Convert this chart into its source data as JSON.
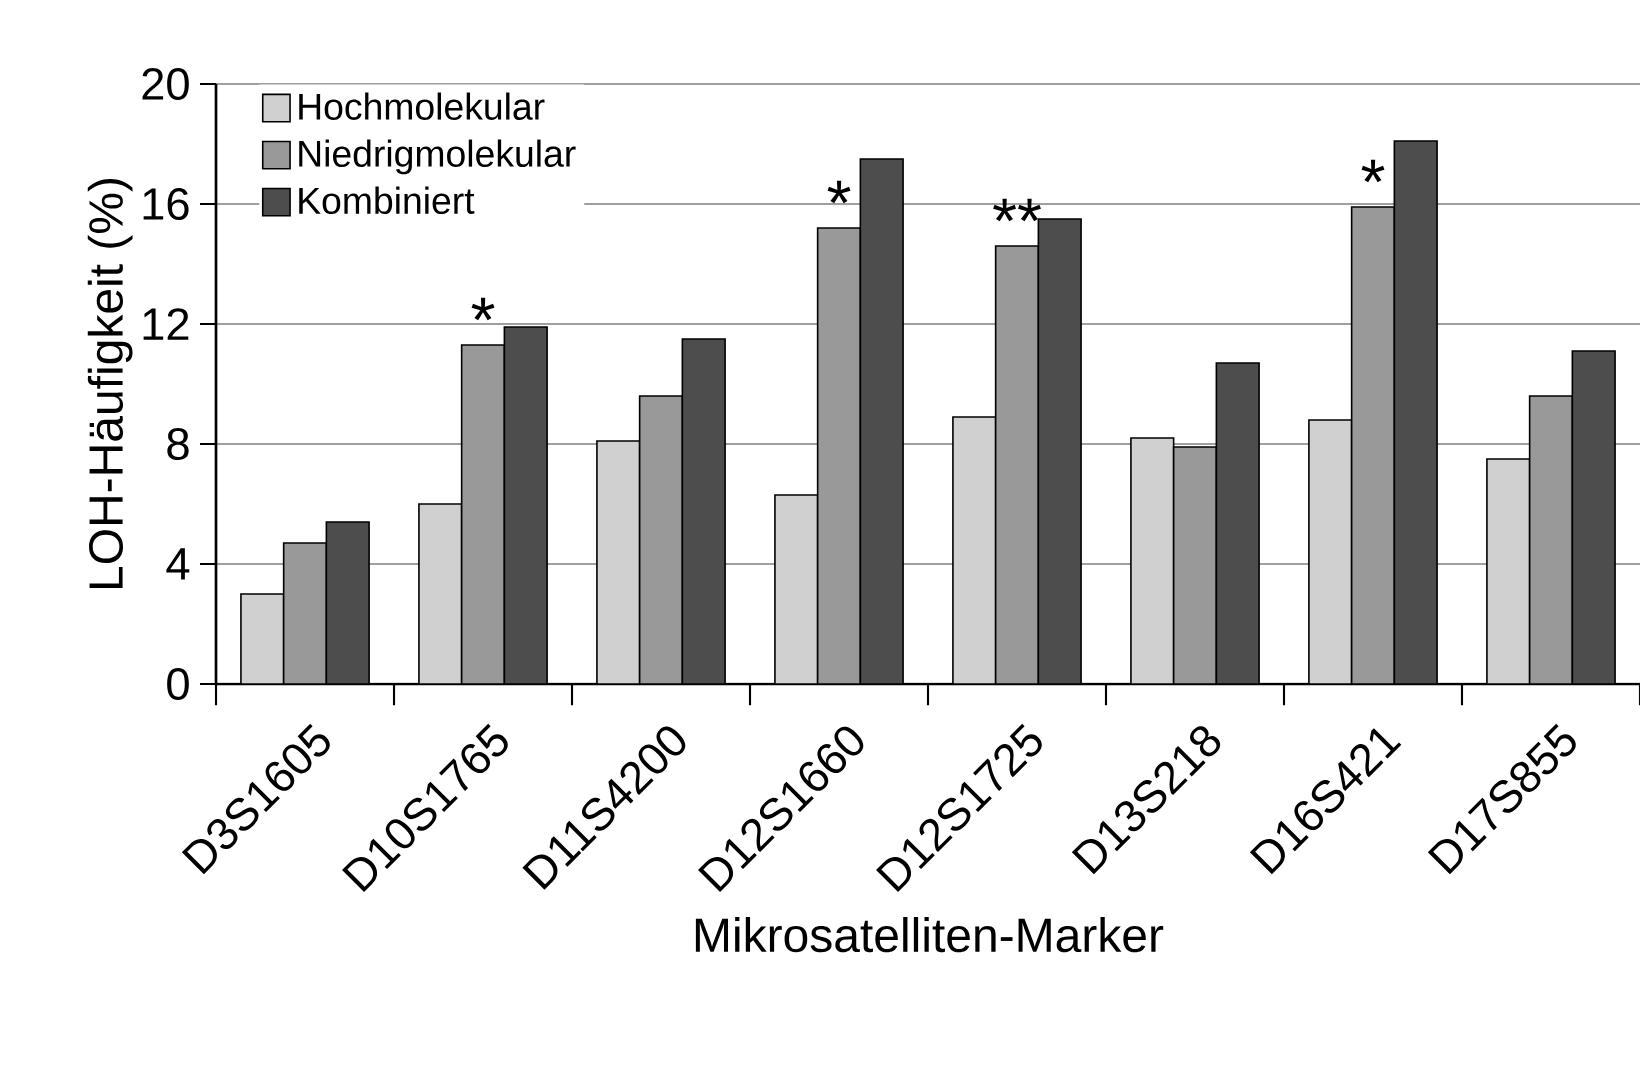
{
  "chart_data": {
    "type": "bar",
    "xlabel": "Mikrosatelliten-Marker",
    "ylabel": "LOH-Häufigkeit (%)",
    "categories": [
      "D3S1605",
      "D10S1765",
      "D11S4200",
      "D12S1660",
      "D12S1725",
      "D13S218",
      "D16S421",
      "D17S855"
    ],
    "series": [
      {
        "name": "Hochmolekular",
        "color": "#d0d0d0",
        "values": [
          3.0,
          6.0,
          8.1,
          6.3,
          8.9,
          8.2,
          8.8,
          7.5
        ]
      },
      {
        "name": "Niedrigmolekular",
        "color": "#999999",
        "values": [
          4.7,
          11.3,
          9.6,
          15.2,
          14.6,
          7.9,
          15.9,
          9.6
        ]
      },
      {
        "name": "Kombiniert",
        "color": "#4d4d4d",
        "values": [
          5.4,
          11.9,
          11.5,
          17.5,
          15.5,
          10.7,
          18.1,
          11.1
        ]
      }
    ],
    "ylim": [
      0,
      20
    ],
    "yticks": [
      0,
      4,
      8,
      12,
      16,
      20
    ],
    "grid": "y",
    "legend": "top left",
    "annotations": [
      {
        "text": "*",
        "x": "D10S1765",
        "y": 11.3
      },
      {
        "text": "*",
        "x": "D12S1660",
        "y": 15.2
      },
      {
        "text": "**",
        "x": "D12S1725",
        "y": 14.6
      },
      {
        "text": "*",
        "x": "D16S421",
        "y": 15.9
      }
    ]
  }
}
